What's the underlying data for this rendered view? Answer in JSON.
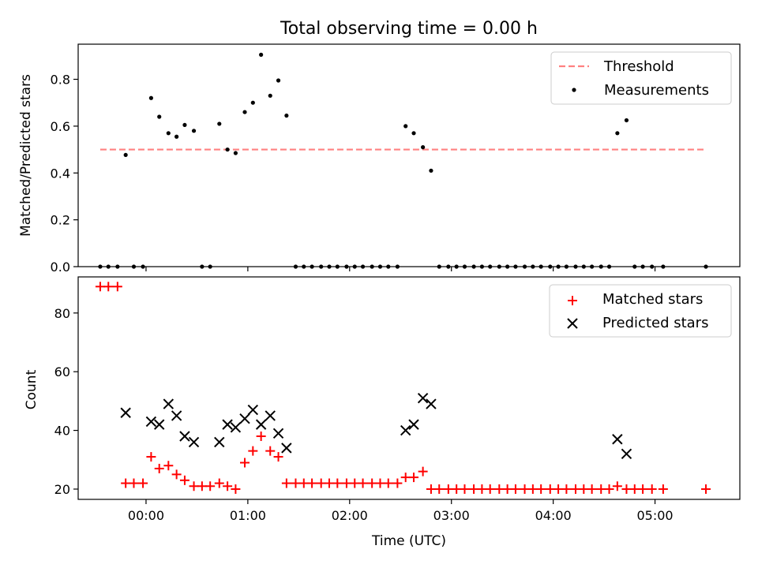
{
  "chart_data": [
    {
      "type": "scatter",
      "title": "Total observing time = 0.00 h",
      "xlabel": "",
      "ylabel": "Matched/Predicted stars",
      "xlim": [
        -0.6667,
        5.8333
      ],
      "ylim": [
        0,
        0.95
      ],
      "yticks": [
        0.0,
        0.2,
        0.4,
        0.6,
        0.8
      ],
      "ytick_labels": [
        "0.0",
        "0.2",
        "0.4",
        "0.6",
        "0.8"
      ],
      "xticks": [
        0,
        1,
        2,
        3,
        4,
        5
      ],
      "show_xtick_labels": false,
      "grid": false,
      "legend_position": "upper right",
      "threshold": {
        "name": "Threshold",
        "value": 0.5,
        "x_range": [
          -0.45,
          5.5
        ],
        "color": "#ff8080",
        "style": "dashed"
      },
      "series": [
        {
          "name": "Measurements",
          "color": "#000000",
          "marker": "dot",
          "x": [
            -0.45,
            -0.37,
            -0.28,
            -0.2,
            -0.12,
            -0.03,
            0.05,
            0.13,
            0.22,
            0.3,
            0.38,
            0.47,
            0.55,
            0.63,
            0.72,
            0.8,
            0.88,
            0.97,
            1.05,
            1.13,
            1.22,
            1.3,
            1.38,
            1.47,
            1.55,
            1.63,
            1.72,
            1.8,
            1.88,
            1.97,
            2.05,
            2.13,
            2.22,
            2.3,
            2.38,
            2.47,
            2.55,
            2.63,
            2.72,
            2.8,
            2.88,
            2.97,
            3.05,
            3.13,
            3.22,
            3.3,
            3.38,
            3.47,
            3.55,
            3.63,
            3.72,
            3.8,
            3.88,
            3.97,
            4.05,
            4.13,
            4.22,
            4.3,
            4.38,
            4.47,
            4.55,
            4.63,
            4.72,
            4.8,
            4.88,
            4.97,
            5.08,
            5.5
          ],
          "y": [
            0,
            0,
            0,
            0.477,
            0,
            0,
            0.72,
            0.64,
            0.57,
            0.555,
            0.605,
            0.58,
            0,
            0,
            0.61,
            0.5,
            0.485,
            0.66,
            0.7,
            0.905,
            0.73,
            0.795,
            0.645,
            0,
            0,
            0,
            0,
            0,
            0,
            0,
            0,
            0,
            0,
            0,
            0,
            0,
            0.6,
            0.57,
            0.51,
            0.41,
            0,
            0,
            0,
            0,
            0,
            0,
            0,
            0,
            0,
            0,
            0,
            0,
            0,
            0,
            0,
            0,
            0,
            0,
            0,
            0,
            0,
            0.57,
            0.625,
            0,
            0,
            0,
            0,
            0
          ]
        }
      ]
    },
    {
      "type": "scatter",
      "title": "",
      "xlabel": "Time (UTC)",
      "ylabel": "Count",
      "xlim": [
        -0.6667,
        5.8333
      ],
      "ylim": [
        16.5,
        92.3
      ],
      "yticks": [
        20,
        40,
        60,
        80
      ],
      "ytick_labels": [
        "20",
        "40",
        "60",
        "80"
      ],
      "xticks": [
        0,
        1,
        2,
        3,
        4,
        5
      ],
      "xtick_labels": [
        "00:00",
        "01:00",
        "02:00",
        "03:00",
        "04:00",
        "05:00"
      ],
      "grid": false,
      "legend_position": "upper right",
      "series": [
        {
          "name": "Matched stars",
          "color": "#ff0000",
          "marker": "plus",
          "x": [
            -0.45,
            -0.37,
            -0.28,
            -0.2,
            -0.12,
            -0.03,
            0.05,
            0.13,
            0.22,
            0.3,
            0.38,
            0.47,
            0.55,
            0.63,
            0.72,
            0.8,
            0.88,
            0.97,
            1.05,
            1.13,
            1.22,
            1.3,
            1.38,
            1.47,
            1.55,
            1.63,
            1.72,
            1.8,
            1.88,
            1.97,
            2.05,
            2.13,
            2.22,
            2.3,
            2.38,
            2.47,
            2.55,
            2.63,
            2.72,
            2.8,
            2.88,
            2.97,
            3.05,
            3.13,
            3.22,
            3.3,
            3.38,
            3.47,
            3.55,
            3.63,
            3.72,
            3.8,
            3.88,
            3.97,
            4.05,
            4.13,
            4.22,
            4.3,
            4.38,
            4.47,
            4.55,
            4.63,
            4.72,
            4.8,
            4.88,
            4.97,
            5.08,
            5.5
          ],
          "y": [
            89,
            89,
            89,
            22,
            22,
            22,
            31,
            27,
            28,
            25,
            23,
            21,
            21,
            21,
            22,
            21,
            20,
            29,
            33,
            38,
            33,
            31,
            22,
            22,
            22,
            22,
            22,
            22,
            22,
            22,
            22,
            22,
            22,
            22,
            22,
            22,
            24,
            24,
            26,
            20,
            20,
            20,
            20,
            20,
            20,
            20,
            20,
            20,
            20,
            20,
            20,
            20,
            20,
            20,
            20,
            20,
            20,
            20,
            20,
            20,
            20,
            21,
            20,
            20,
            20,
            20,
            20,
            20
          ]
        },
        {
          "name": "Predicted stars",
          "color": "#000000",
          "marker": "x",
          "x": [
            -0.2,
            0.05,
            0.13,
            0.22,
            0.3,
            0.38,
            0.47,
            0.72,
            0.8,
            0.88,
            0.97,
            1.05,
            1.13,
            1.22,
            1.3,
            1.38,
            2.55,
            2.63,
            2.72,
            2.8,
            4.63,
            4.72
          ],
          "y": [
            46,
            43,
            42,
            49,
            45,
            38,
            36,
            36,
            42,
            41,
            44,
            47,
            42,
            45,
            39,
            34,
            40,
            42,
            51,
            49,
            37,
            32
          ]
        }
      ]
    }
  ]
}
